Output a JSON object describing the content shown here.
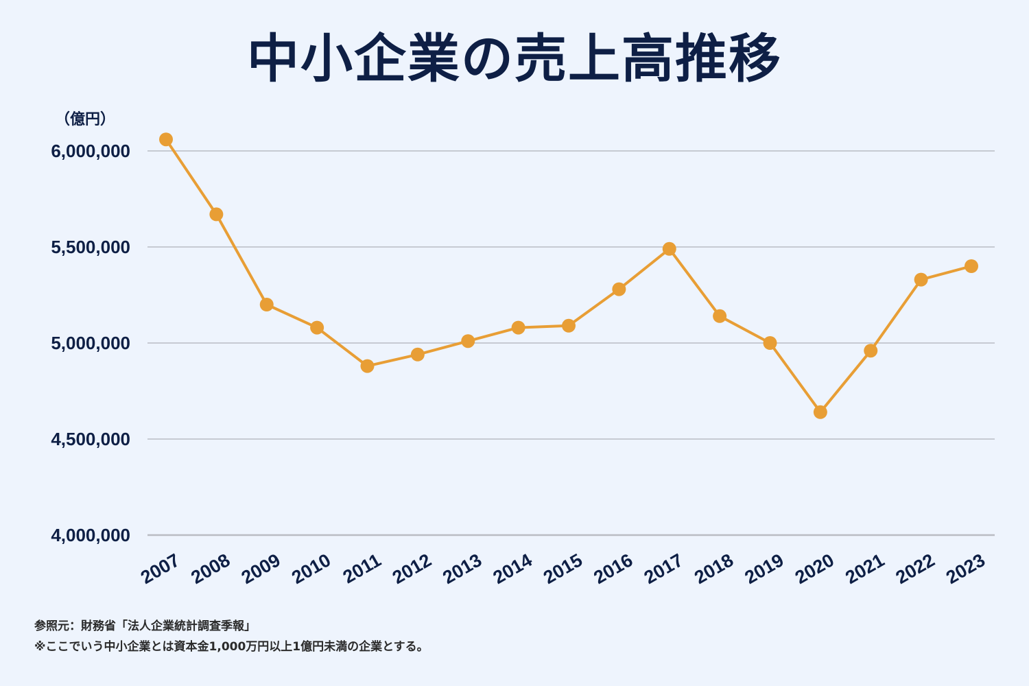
{
  "title": "中小企業の売上高推移",
  "unit_label": "（億円）",
  "chart_data": {
    "type": "line",
    "title": "中小企業の売上高推移",
    "ylabel": "（億円）",
    "xlabel": "",
    "x": [
      "2007",
      "2008",
      "2009",
      "2010",
      "2011",
      "2012",
      "2013",
      "2014",
      "2015",
      "2016",
      "2017",
      "2018",
      "2019",
      "2020",
      "2021",
      "2022",
      "2023"
    ],
    "series": [
      {
        "values": [
          6060000,
          5670000,
          5200000,
          5080000,
          4880000,
          4940000,
          5010000,
          5080000,
          5090000,
          5280000,
          5490000,
          5140000,
          5000000,
          4640000,
          4960000,
          5330000,
          5400000
        ]
      }
    ],
    "ylim": [
      4000000,
      6000000
    ],
    "yticks": [
      "4,000,000",
      "4,500,000",
      "5,000,000",
      "5,500,000",
      "6,000,000"
    ],
    "ytick_values": [
      4000000,
      4500000,
      5000000,
      5500000,
      6000000
    ],
    "grid": true,
    "line_color": "#e89e35",
    "grid_color": "#b9bcc3",
    "text_color": "#0e1f45"
  },
  "footer": {
    "source": "参照元：財務省「法人企業統計調査季報」",
    "note": "※ここでいう中小企業とは資本金1,000万円以上1億円未満の企業とする。"
  }
}
